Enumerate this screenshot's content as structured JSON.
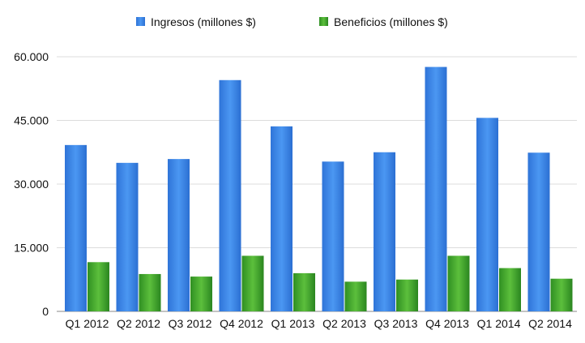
{
  "chart_data": {
    "type": "bar",
    "categories": [
      "Q1 2012",
      "Q2 2012",
      "Q3 2012",
      "Q4 2012",
      "Q1 2013",
      "Q2 2013",
      "Q3 2013",
      "Q4 2013",
      "Q1 2014",
      "Q2 2014"
    ],
    "series": [
      {
        "name": "Ingresos (millones $)",
        "values": [
          39200,
          35000,
          35900,
          54500,
          43600,
          35300,
          37500,
          57600,
          45600,
          37400
        ],
        "color": "#3a86e8"
      },
      {
        "name": "Beneficios (millones $)",
        "values": [
          11600,
          8800,
          8200,
          13100,
          9000,
          7000,
          7500,
          13100,
          10200,
          7700
        ],
        "color": "#48a834"
      }
    ],
    "y_ticks": [
      "0",
      "15.000",
      "30.000",
      "45.000",
      "60.000"
    ],
    "ylim": [
      0,
      60000
    ],
    "legend_position": "top",
    "grid": true
  }
}
